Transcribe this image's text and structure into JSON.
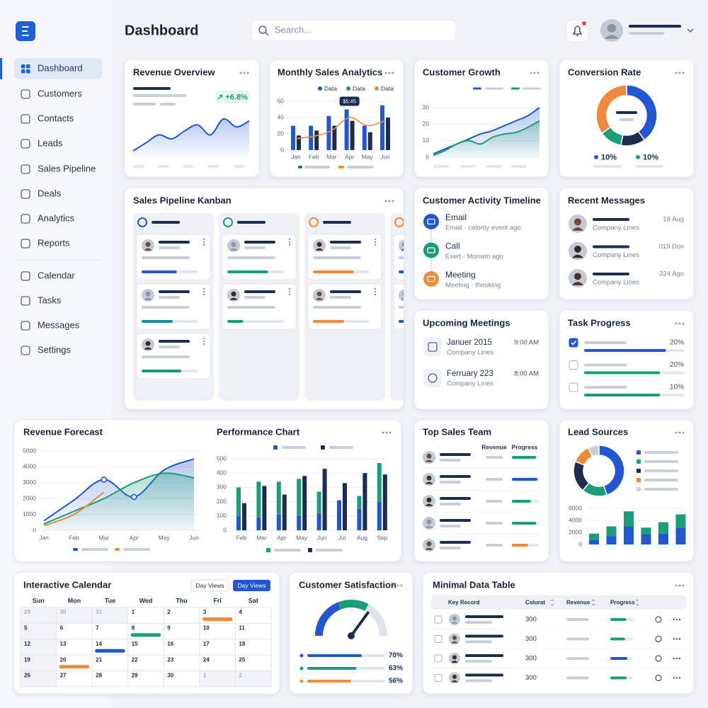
{
  "sidebar": {
    "nav": [
      "Dashboard",
      "Customers",
      "Contacts",
      "Leads",
      "Sales Pipeline",
      "Deals",
      "Analytics",
      "Reports"
    ],
    "nav_secondary": [
      "Calendar",
      "Tasks",
      "Messages",
      "Settings"
    ]
  },
  "header": {
    "title": "Dashboard",
    "search_placeholder": "Search..."
  },
  "revenue_overview": {
    "title": "Revenue Overview",
    "change": "↗ +6.8%",
    "trend": [
      14,
      22,
      30,
      26,
      34,
      40,
      30,
      46,
      38,
      44
    ]
  },
  "monthly_sales": {
    "type": "bar",
    "title": "Monthly Sales Analytics",
    "categories": [
      "Jan",
      "Feb",
      "Mar",
      "Apr",
      "May",
      "Jun"
    ],
    "ylim": [
      0,
      60
    ],
    "yticks": [
      0,
      20,
      40,
      60
    ],
    "tooltip": "$5:45",
    "series": [
      {
        "name": "Data",
        "color": "#2357d1",
        "values": [
          30,
          30,
          42,
          50,
          30,
          55
        ]
      },
      {
        "name": "Data",
        "color": "#1a9e78",
        "values": [
          18,
          24,
          30,
          36,
          22,
          40
        ]
      },
      {
        "name": "Data",
        "color": "#f08a3c",
        "type": "line",
        "values": [
          14,
          17,
          24,
          40,
          30,
          36
        ]
      }
    ]
  },
  "customer_growth": {
    "type": "area",
    "title": "Customer Growth",
    "ylim": [
      0,
      30
    ],
    "yticks": [
      0,
      10,
      20,
      30
    ],
    "series": [
      {
        "color": "#2357d1",
        "values": [
          2,
          5,
          8,
          11,
          14,
          16,
          19,
          22,
          25,
          30
        ]
      },
      {
        "color": "#1a9e78",
        "values": [
          1,
          4,
          8,
          10,
          8,
          12,
          14,
          15,
          18,
          22
        ]
      }
    ]
  },
  "conversion_rate": {
    "type": "pie",
    "title": "Conversion Rate",
    "values": [
      40,
      13,
      12,
      35
    ],
    "colors": [
      "#2357d1",
      "#1d2d50",
      "#1a9e78",
      "#f08a3c"
    ],
    "legend": [
      {
        "label": "10%",
        "color": "#2357d1"
      },
      {
        "label": "10%",
        "color": "#1a9e78"
      }
    ]
  },
  "kanban": {
    "title": "Sales Pipeline Kanban",
    "columns": [
      {
        "color": "#2357d1",
        "cards": [
          {
            "color": "#2357d1",
            "progress": 62
          },
          {
            "color": "#1b8a9e",
            "progress": 55
          },
          {
            "color": "#1a9e78",
            "progress": 70
          }
        ]
      },
      {
        "color": "#1a9e78",
        "cards": [
          {
            "color": "#1a9e78",
            "progress": 72
          },
          {
            "color": "#1a9e78",
            "progress": 28
          }
        ]
      },
      {
        "color": "#f08a3c",
        "cards": [
          {
            "color": "#f08a3c",
            "progress": 72
          },
          {
            "color": "#f08a3c",
            "progress": 55
          }
        ]
      },
      {
        "color": "#f08a3c",
        "cards": [
          {
            "color": "#2357d1",
            "progress": 60
          },
          {
            "color": "#2357d1",
            "progress": 40
          }
        ]
      }
    ]
  },
  "activity": {
    "title": "Customer Activity Timeline",
    "items": [
      {
        "title": "Email",
        "detail": "Email · celortiy event ago",
        "color": "#2357d1"
      },
      {
        "title": "Call",
        "detail": "Exert · Monwin ago",
        "color": "#1a9e78"
      },
      {
        "title": "Meeting",
        "detail": "Meeting · theoking",
        "color": "#f08a3c"
      }
    ]
  },
  "messages": {
    "title": "Recent Messages",
    "items": [
      {
        "company": "Company Lines",
        "date": "18 Aug"
      },
      {
        "company": "Company Lines",
        "date": "019 Dov"
      },
      {
        "company": "Company Lines",
        "date": "324 Ago"
      }
    ]
  },
  "meetings": {
    "title": "Upcoming Meetings",
    "items": [
      {
        "title": "Januer 2015",
        "time": "9:00 AM",
        "company": "Company Lines"
      },
      {
        "title": "Ferruary 223",
        "time": "8:00 AM",
        "company": "Company Lines"
      }
    ]
  },
  "tasks": {
    "title": "Task Progress",
    "items": [
      {
        "label": "20%",
        "progress": 82,
        "color": "#2357d1",
        "checked": true
      },
      {
        "label": "20%",
        "progress": 76,
        "color": "#1a9e78",
        "checked": false
      },
      {
        "label": "10%",
        "progress": 76,
        "color": "#1a9e78",
        "checked": false
      }
    ]
  },
  "revenue_forecast": {
    "type": "line",
    "title": "Revenue Forecast",
    "categories": [
      "Jan",
      "Feb",
      "Mar",
      "Apr",
      "May",
      "Jun"
    ],
    "ylim": [
      0,
      5000
    ],
    "yticks": [
      0,
      1000,
      2000,
      3000,
      4000,
      5000
    ],
    "series": [
      {
        "color": "#2357d1",
        "values": [
          600,
          1900,
          3200,
          2100,
          3800,
          4500
        ]
      },
      {
        "color": "#1a9e78",
        "values": [
          400,
          1200,
          2000,
          3000,
          3600,
          3300
        ]
      },
      {
        "color": "#f08a3c",
        "values": [
          300,
          1000,
          2400,
          null,
          null,
          null
        ]
      }
    ]
  },
  "performance": {
    "type": "bar",
    "title": "Performance Chart",
    "categories": [
      "Feb",
      "Mar",
      "Apr",
      "May",
      "Jun",
      "Jul",
      "Aug",
      "Sep"
    ],
    "ylim": [
      0,
      500
    ],
    "yticks": [
      0,
      100,
      200,
      300,
      400,
      500
    ],
    "series": [
      {
        "color": "#2357d1",
        "stack": "a",
        "values": [
          100,
          90,
          110,
          100,
          120,
          210,
          150,
          200
        ]
      },
      {
        "color": "#1a9e78",
        "stack": "a",
        "values": [
          200,
          250,
          230,
          260,
          150,
          0,
          90,
          270
        ]
      },
      {
        "color": "#1d2d50",
        "values": [
          190,
          310,
          250,
          380,
          430,
          330,
          400,
          390
        ]
      }
    ]
  },
  "top_sales": {
    "title": "Top Sales Team",
    "headers": [
      "Revenue",
      "Progress"
    ],
    "rows": [
      {
        "progress": 90,
        "color": "#1a9e78"
      },
      {
        "progress": 95,
        "color": "#2357d1"
      },
      {
        "progress": 70,
        "color": "#1a9e78"
      },
      {
        "progress": 90,
        "color": "#1a9e78"
      },
      {
        "progress": 60,
        "color": "#f08a3c"
      }
    ]
  },
  "lead_sources": {
    "title": "Lead Sources",
    "donut": {
      "values": [
        45,
        16,
        20,
        12,
        7
      ],
      "colors": [
        "#2357d1",
        "#1a9e78",
        "#1d2d50",
        "#f08a3c",
        "#c9ced8"
      ]
    },
    "bars": {
      "type": "bar",
      "ylim": [
        0,
        6000
      ],
      "yticks": [
        0,
        2000,
        4000,
        6000
      ],
      "series": [
        {
          "color": "#2357d1",
          "values": [
            800,
            1400,
            3000,
            1700,
            1800,
            2800
          ]
        },
        {
          "color": "#1a9e78",
          "values": [
            1000,
            1600,
            2500,
            1100,
            1900,
            2200
          ]
        }
      ]
    }
  },
  "calendar": {
    "title": "Interactive Calendar",
    "buttons": [
      "Day Views",
      "Day Views"
    ],
    "weekdays": [
      "Sun",
      "Mon",
      "Tue",
      "Wed",
      "Thu",
      "Fri",
      "Sat"
    ],
    "weeks": [
      [
        29,
        30,
        31,
        1,
        2,
        3,
        4
      ],
      [
        5,
        6,
        7,
        8,
        9,
        10,
        11
      ],
      [
        12,
        13,
        14,
        15,
        16,
        17,
        18
      ],
      [
        19,
        20,
        21,
        22,
        23,
        24,
        25
      ],
      [
        26,
        27,
        28,
        29,
        30,
        1,
        2
      ]
    ]
  },
  "satisfaction": {
    "title": "Customer Satisfaction",
    "values": [
      70,
      63,
      56
    ],
    "value_labels": [
      "70%",
      "63%",
      "56%"
    ],
    "colors": [
      "#2357d1",
      "#1a9e78",
      "#f08a3c"
    ]
  },
  "table": {
    "title": "Minimal Data Table",
    "headers": [
      "Key Record",
      "Colurat",
      "Revenue",
      "Progress"
    ],
    "rows": [
      {
        "colurat": 300,
        "progress": 70,
        "color": "#1a9e78"
      },
      {
        "colurat": 300,
        "progress": 65,
        "color": "#1a9e78"
      },
      {
        "colurat": 300,
        "progress": 75,
        "color": "#2357d1"
      },
      {
        "colurat": 300,
        "progress": 72,
        "color": "#1a9e78"
      }
    ]
  }
}
